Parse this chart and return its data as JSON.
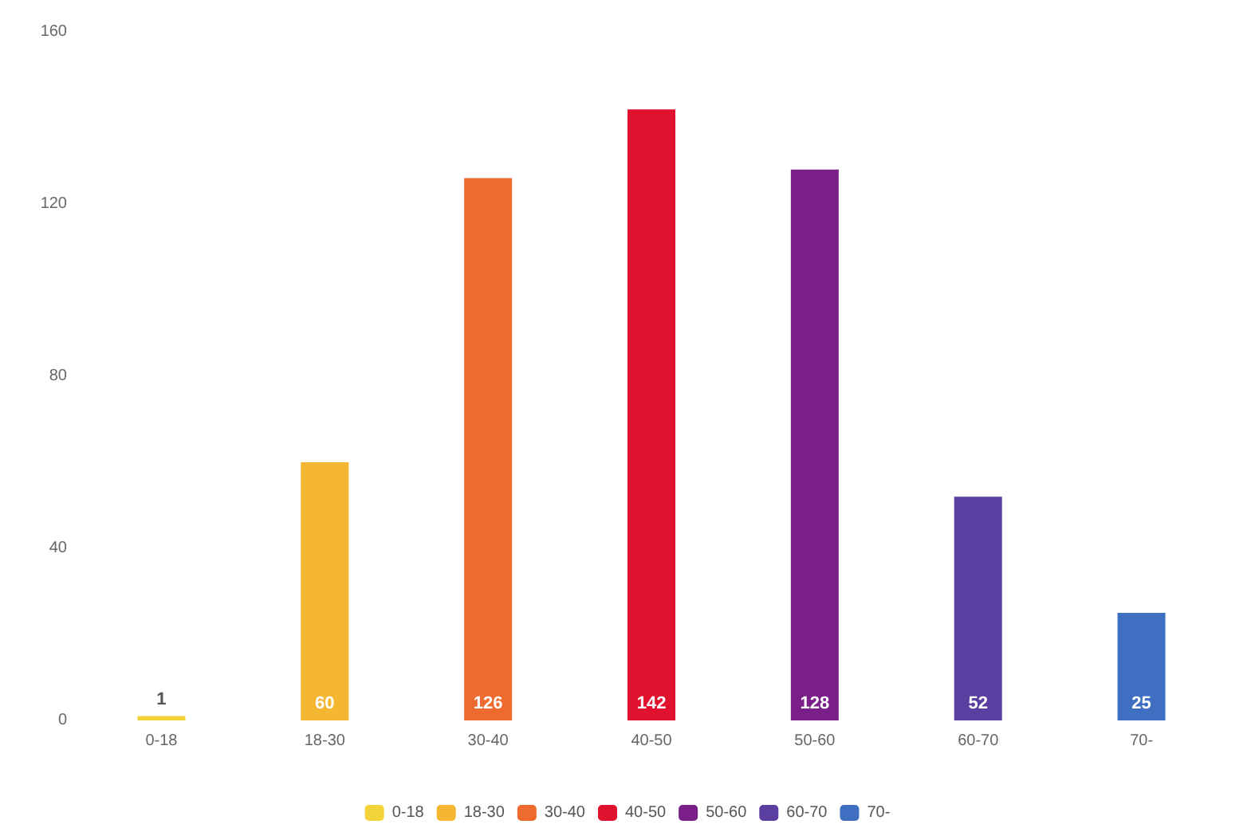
{
  "chart_data": {
    "type": "bar",
    "categories": [
      "0-18",
      "18-30",
      "30-40",
      "40-50",
      "50-60",
      "60-70",
      "70-"
    ],
    "series": [
      {
        "name": "0-18",
        "color": "#f2d43a",
        "values": [
          1,
          null,
          null,
          null,
          null,
          null,
          null
        ]
      },
      {
        "name": "18-30",
        "color": "#f5b731",
        "values": [
          null,
          60,
          null,
          null,
          null,
          null,
          null
        ]
      },
      {
        "name": "30-40",
        "color": "#ee6a2e",
        "values": [
          null,
          null,
          126,
          null,
          null,
          null,
          null
        ]
      },
      {
        "name": "40-50",
        "color": "#e0122e",
        "values": [
          null,
          null,
          null,
          142,
          null,
          null,
          null
        ]
      },
      {
        "name": "50-60",
        "color": "#7a1e8a",
        "values": [
          null,
          null,
          null,
          null,
          128,
          null,
          null
        ]
      },
      {
        "name": "60-70",
        "color": "#5a3fa0",
        "values": [
          null,
          null,
          null,
          null,
          null,
          52,
          null
        ]
      },
      {
        "name": "70-",
        "color": "#3f6fc0",
        "values": [
          null,
          null,
          null,
          null,
          null,
          null,
          25
        ]
      }
    ],
    "ylim": [
      0,
      160
    ],
    "yticks": [
      0,
      40,
      80,
      120,
      160
    ],
    "grid": false,
    "legend": "bottom",
    "data_labels": true
  }
}
